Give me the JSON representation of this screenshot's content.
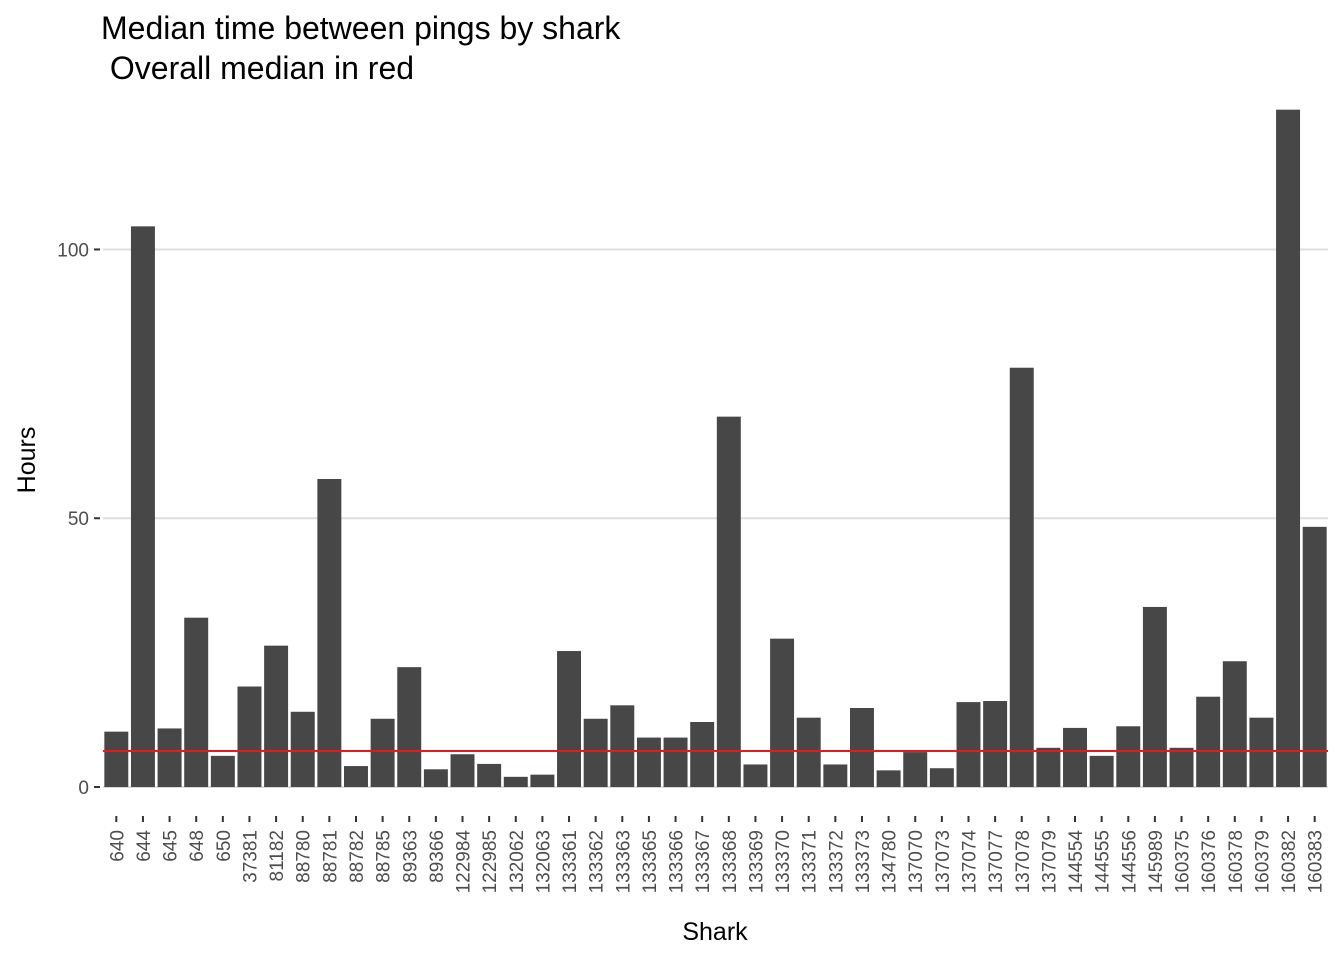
{
  "chart_data": {
    "type": "bar",
    "title": "Median time between pings by shark",
    "subtitle": " Overall median in red",
    "xlabel": "Shark",
    "ylabel": "Hours",
    "ylim": [
      -3.9,
      126.5
    ],
    "yticks": [
      0,
      50,
      100
    ],
    "grid": "horizontal major",
    "colors": {
      "bar": "#474747",
      "median_line": "#e8191b",
      "grid": "#dedede"
    },
    "median_line": {
      "value": 6.7,
      "color": "red"
    },
    "categories": [
      "640",
      "644",
      "645",
      "648",
      "650",
      "37381",
      "81182",
      "88780",
      "88781",
      "88782",
      "88785",
      "89363",
      "89366",
      "122984",
      "122985",
      "132062",
      "132063",
      "133361",
      "133362",
      "133363",
      "133365",
      "133366",
      "133367",
      "133368",
      "133369",
      "133370",
      "133371",
      "133372",
      "133373",
      "134780",
      "137070",
      "137073",
      "137074",
      "137077",
      "137078",
      "137079",
      "144554",
      "144555",
      "144556",
      "145989",
      "160375",
      "160376",
      "160378",
      "160379",
      "160382",
      "160383"
    ],
    "values": [
      10.3,
      104.3,
      10.9,
      31.5,
      5.8,
      18.7,
      26.3,
      14.0,
      57.3,
      3.9,
      12.7,
      22.3,
      3.3,
      6.1,
      4.3,
      1.9,
      2.3,
      25.3,
      12.7,
      15.2,
      9.2,
      9.2,
      12.1,
      68.9,
      4.2,
      27.6,
      12.9,
      4.2,
      14.7,
      3.1,
      6.5,
      3.5,
      15.8,
      16.0,
      78.0,
      7.3,
      11.0,
      5.8,
      11.3,
      33.5,
      7.3,
      16.8,
      23.4,
      12.9,
      126.0,
      48.4
    ]
  }
}
